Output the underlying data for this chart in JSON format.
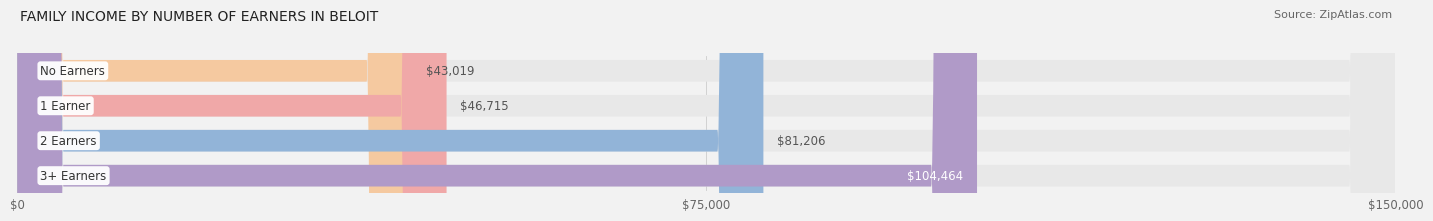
{
  "title": "FAMILY INCOME BY NUMBER OF EARNERS IN BELOIT",
  "source": "Source: ZipAtlas.com",
  "categories": [
    "No Earners",
    "1 Earner",
    "2 Earners",
    "3+ Earners"
  ],
  "values": [
    43019,
    46715,
    81206,
    104464
  ],
  "bar_colors": [
    "#f5c9a0",
    "#f0a8a8",
    "#92b4d8",
    "#b09ac8"
  ],
  "label_colors": [
    "#555555",
    "#555555",
    "#555555",
    "#ffffff"
  ],
  "label_texts": [
    "$43,019",
    "$46,715",
    "$81,206",
    "$104,464"
  ],
  "xlim": [
    0,
    150000
  ],
  "xticks": [
    0,
    75000,
    150000
  ],
  "xtick_labels": [
    "$0",
    "$75,000",
    "$150,000"
  ],
  "bar_height": 0.62,
  "background_color": "#f2f2f2",
  "bar_background_color": "#e8e8e8",
  "title_fontsize": 10,
  "label_fontsize": 8.5,
  "tick_fontsize": 8.5,
  "source_fontsize": 8
}
